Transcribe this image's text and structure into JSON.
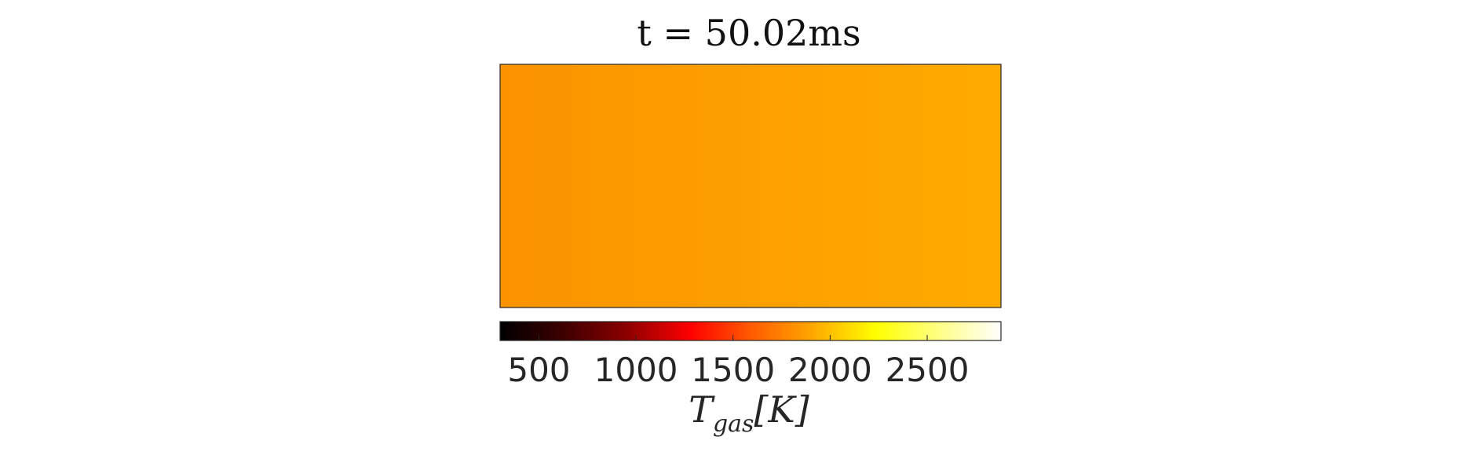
{
  "chart_data": {
    "type": "heatmap",
    "title": "t = 50.02ms",
    "field_description_colors": {
      "left": "#fb9300",
      "right": "#ffab00"
    },
    "field_values_K": {
      "left": 1950,
      "right": 2090
    },
    "colormap": "hot",
    "colorbar": {
      "orientation": "horizontal",
      "placement": "bottom",
      "range": [
        300,
        2880
      ],
      "ticks": [
        500,
        1000,
        1500,
        2000,
        2500
      ],
      "tick_labels": [
        "500",
        "1000",
        "1500",
        "2000",
        "2500"
      ],
      "label_main": "T",
      "label_sub": "gas",
      "label_unit": "[K]"
    }
  }
}
